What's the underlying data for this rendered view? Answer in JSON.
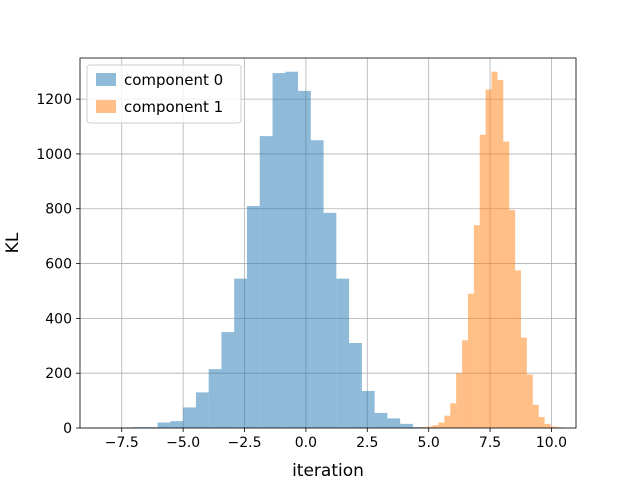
{
  "chart_data": {
    "type": "bar",
    "title": "",
    "xlabel": "iteration",
    "ylabel": "KL",
    "xlim": [
      -9.2,
      11.0
    ],
    "ylim": [
      0,
      1350
    ],
    "xticks": [
      -7.5,
      -5.0,
      -2.5,
      0.0,
      2.5,
      5.0,
      7.5,
      10.0
    ],
    "xtick_labels": [
      "−7.5",
      "−5.0",
      "−2.5",
      "0.0",
      "2.5",
      "5.0",
      "7.5",
      "10.0"
    ],
    "yticks": [
      0,
      200,
      400,
      600,
      800,
      1000,
      1200
    ],
    "ytick_labels": [
      "0",
      "200",
      "400",
      "600",
      "800",
      "1000",
      "1200"
    ],
    "grid": true,
    "legend_position": "top-left",
    "series": [
      {
        "name": "component 0",
        "color": "#1f77b4",
        "alpha": 0.5,
        "bin_edges": [
          -7.6,
          -7.08,
          -6.56,
          -6.04,
          -5.52,
          -5.0,
          -4.48,
          -3.96,
          -3.44,
          -2.92,
          -2.4,
          -1.88,
          -1.36,
          -0.84,
          -0.32,
          0.2,
          0.72,
          1.24,
          1.76,
          2.28,
          2.8,
          3.32,
          3.84,
          4.36,
          4.88
        ],
        "counts": [
          2,
          3,
          3,
          20,
          25,
          75,
          130,
          215,
          350,
          545,
          810,
          1065,
          1295,
          1300,
          1230,
          1050,
          785,
          545,
          310,
          135,
          55,
          35,
          15,
          3
        ]
      },
      {
        "name": "component 1",
        "color": "#ff7f0e",
        "alpha": 0.5,
        "bin_edges": [
          4.68,
          4.92,
          5.16,
          5.4,
          5.64,
          5.88,
          6.12,
          6.36,
          6.6,
          6.84,
          7.08,
          7.32,
          7.56,
          7.8,
          8.04,
          8.28,
          8.52,
          8.76,
          9.0,
          9.24,
          9.48,
          9.72,
          9.96,
          10.2,
          10.44
        ],
        "counts": [
          3,
          5,
          10,
          20,
          45,
          90,
          200,
          320,
          490,
          740,
          1070,
          1235,
          1300,
          1270,
          1045,
          795,
          575,
          330,
          195,
          85,
          40,
          15,
          5,
          3
        ]
      }
    ]
  }
}
